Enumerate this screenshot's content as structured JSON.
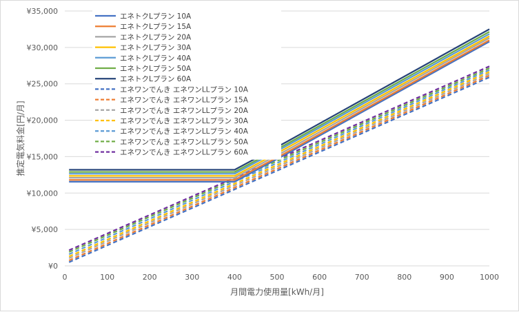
{
  "chart_data": {
    "type": "line",
    "xlabel": "月間電力使用量[kWh/月]",
    "ylabel": "推定電気料金[円/月]",
    "xlim": [
      0,
      1000
    ],
    "ylim": [
      0,
      35000
    ],
    "x_ticks": [
      "0",
      "100",
      "200",
      "300",
      "400",
      "500",
      "600",
      "700",
      "800",
      "900",
      "1000"
    ],
    "y_ticks": [
      "¥0",
      "¥5,000",
      "¥10,000",
      "¥15,000",
      "¥20,000",
      "¥25,000",
      "¥30,000",
      "¥35,000"
    ],
    "grid": "horizontal",
    "legend_position": "top-left",
    "series": [
      {
        "name": "エネトクLプラン 10A",
        "color": "#4472c4",
        "dash": "solid",
        "x": [
          10,
          400,
          520,
          1000
        ],
        "y": [
          11550,
          11550,
          15300,
          30800
        ]
      },
      {
        "name": "エネトクLプラン 15A",
        "color": "#ed7d31",
        "dash": "solid",
        "x": [
          10,
          400,
          520,
          1000
        ],
        "y": [
          11800,
          11800,
          15500,
          31000
        ]
      },
      {
        "name": "エネトクLプラン 20A",
        "color": "#a5a5a5",
        "dash": "solid",
        "x": [
          10,
          400,
          520,
          1000
        ],
        "y": [
          12100,
          12100,
          15800,
          31300
        ]
      },
      {
        "name": "エネトクLプラン 30A",
        "color": "#ffc000",
        "dash": "solid",
        "x": [
          10,
          400,
          520,
          1000
        ],
        "y": [
          12350,
          12350,
          16100,
          31550
        ]
      },
      {
        "name": "エネトクLプラン 40A",
        "color": "#5b9bd5",
        "dash": "solid",
        "x": [
          10,
          400,
          520,
          1000
        ],
        "y": [
          12650,
          12650,
          16400,
          31850
        ]
      },
      {
        "name": "エネトクLプラン 50A",
        "color": "#70ad47",
        "dash": "solid",
        "x": [
          10,
          400,
          520,
          1000
        ],
        "y": [
          12900,
          12900,
          16650,
          32150
        ]
      },
      {
        "name": "エネトクLプラン 60A",
        "color": "#264478",
        "dash": "solid",
        "x": [
          10,
          400,
          520,
          1000
        ],
        "y": [
          13200,
          13200,
          16950,
          32500
        ]
      },
      {
        "name": "エネワンでんき エネワンLLプラン 10A",
        "color": "#4472c4",
        "dash": "dashed",
        "x": [
          10,
          1000
        ],
        "y": [
          500,
          25900
        ]
      },
      {
        "name": "エネワンでんき エネワンLLプラン 15A",
        "color": "#ed7d31",
        "dash": "dashed",
        "x": [
          10,
          1000
        ],
        "y": [
          750,
          26150
        ]
      },
      {
        "name": "エネワンでんき エネワンLLプラン 20A",
        "color": "#a5a5a5",
        "dash": "dashed",
        "x": [
          10,
          1000
        ],
        "y": [
          1050,
          26400
        ]
      },
      {
        "name": "エネワンでんき エネワンLLプラン 30A",
        "color": "#ffc000",
        "dash": "dashed",
        "x": [
          10,
          1000
        ],
        "y": [
          1300,
          26650
        ]
      },
      {
        "name": "エネワンでんき エネワンLLプラン 40A",
        "color": "#5b9bd5",
        "dash": "dashed",
        "x": [
          10,
          1000
        ],
        "y": [
          1600,
          26900
        ]
      },
      {
        "name": "エネワンでんき エネワンLLプラン 50A",
        "color": "#70ad47",
        "dash": "dashed",
        "x": [
          10,
          1000
        ],
        "y": [
          1900,
          27150
        ]
      },
      {
        "name": "エネワンでんき エネワンLLプラン 60A",
        "color": "#7030a0",
        "dash": "dashed",
        "x": [
          10,
          1000
        ],
        "y": [
          2150,
          27400
        ]
      }
    ]
  }
}
